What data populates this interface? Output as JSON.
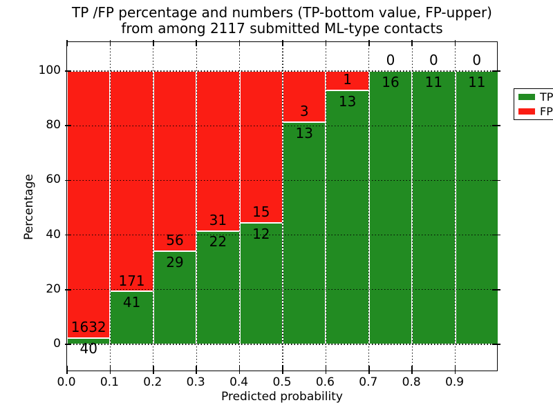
{
  "figure": {
    "title_line1": "TP /FP percentage and numbers (TP-bottom value, FP-upper)",
    "title_line2": "from among 2117 submitted ML-type contacts"
  },
  "chart_data": {
    "type": "bar",
    "stacked": true,
    "normalization": "each bin scaled to 100 percent, TP bottom and FP top",
    "title": "TP /FP percentage and numbers (TP-bottom value, FP-upper) from among 2117 submitted ML-type contacts",
    "xlabel": "Predicted probability",
    "ylabel": "Percentage",
    "x_tick_labels": [
      "0.0",
      "0.1",
      "0.2",
      "0.3",
      "0.4",
      "0.5",
      "0.6",
      "0.7",
      "0.8",
      "0.9"
    ],
    "y_tick_values": [
      0,
      20,
      40,
      60,
      80,
      100
    ],
    "xlim": [
      0.0,
      1.0
    ],
    "ylim": [
      -10.6,
      110.6
    ],
    "grid": "dotted black lines drawn above bars",
    "total_contacts": 2117,
    "legend": {
      "position": "upper right",
      "entries": [
        {
          "label": "TP",
          "color": "#228b22"
        },
        {
          "label": "FP",
          "color": "#fb1d14"
        }
      ]
    },
    "bins": [
      {
        "range": "0.0-0.1",
        "tp": 40,
        "fp": 1632
      },
      {
        "range": "0.1-0.2",
        "tp": 41,
        "fp": 171
      },
      {
        "range": "0.2-0.3",
        "tp": 29,
        "fp": 56
      },
      {
        "range": "0.3-0.4",
        "tp": 22,
        "fp": 31
      },
      {
        "range": "0.4-0.5",
        "tp": 12,
        "fp": 15
      },
      {
        "range": "0.5-0.6",
        "tp": 13,
        "fp": 3
      },
      {
        "range": "0.6-0.7",
        "tp": 13,
        "fp": 1
      },
      {
        "range": "0.7-0.8",
        "tp": 16,
        "fp": 0
      },
      {
        "range": "0.8-0.9",
        "tp": 11,
        "fp": 0
      },
      {
        "range": "0.9-1.0",
        "tp": 11,
        "fp": 0
      }
    ]
  },
  "colors": {
    "tp": "#228b22",
    "fp": "#fb1d14",
    "bar_edge": "#ffffff",
    "grid": "#000000",
    "text": "#000000",
    "background": "#ffffff"
  }
}
